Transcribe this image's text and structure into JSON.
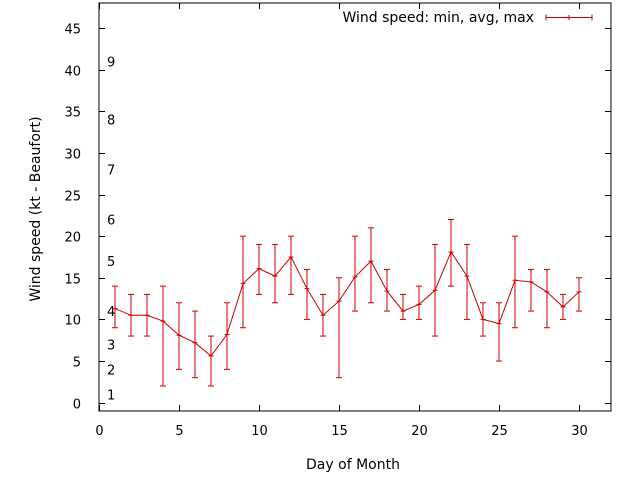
{
  "chart_data": {
    "type": "line",
    "xlabel": "Day of Month",
    "ylabel": "Wind speed (kt - Beaufort)",
    "xlim": [
      0,
      32
    ],
    "ylim": [
      -1,
      48
    ],
    "xticks": [
      0,
      5,
      10,
      15,
      20,
      25,
      30
    ],
    "yticks": [
      0,
      5,
      10,
      15,
      20,
      25,
      30,
      35,
      40,
      45
    ],
    "grid": false,
    "legend_position": "top-right",
    "beaufort_labels": [
      {
        "label": "1",
        "y": 1
      },
      {
        "label": "2",
        "y": 4
      },
      {
        "label": "3",
        "y": 7
      },
      {
        "label": "4",
        "y": 11
      },
      {
        "label": "5",
        "y": 17
      },
      {
        "label": "6",
        "y": 22
      },
      {
        "label": "7",
        "y": 28
      },
      {
        "label": "8",
        "y": 34
      },
      {
        "label": "9",
        "y": 41
      }
    ],
    "series": [
      {
        "name": "Wind speed: min, avg, max",
        "color": "#cc0000",
        "points": [
          {
            "x": 1,
            "avg": 11.3,
            "min": 9,
            "max": 14
          },
          {
            "x": 2,
            "avg": 10.5,
            "min": 8,
            "max": 13
          },
          {
            "x": 3,
            "avg": 10.5,
            "min": 8,
            "max": 13
          },
          {
            "x": 4,
            "avg": 9.8,
            "min": 2,
            "max": 14
          },
          {
            "x": 5,
            "avg": 8.1,
            "min": 4,
            "max": 12
          },
          {
            "x": 6,
            "avg": 7.2,
            "min": 3,
            "max": 11
          },
          {
            "x": 7,
            "avg": 5.6,
            "min": 2,
            "max": 8
          },
          {
            "x": 8,
            "avg": 8.2,
            "min": 4,
            "max": 12
          },
          {
            "x": 9,
            "avg": 14.3,
            "min": 9,
            "max": 20
          },
          {
            "x": 10,
            "avg": 16.1,
            "min": 13,
            "max": 19
          },
          {
            "x": 11,
            "avg": 15.2,
            "min": 12,
            "max": 19
          },
          {
            "x": 12,
            "avg": 17.5,
            "min": 13,
            "max": 20
          },
          {
            "x": 13,
            "avg": 13.7,
            "min": 10,
            "max": 16
          },
          {
            "x": 14,
            "avg": 10.5,
            "min": 8,
            "max": 13
          },
          {
            "x": 15,
            "avg": 12.2,
            "min": 3,
            "max": 15
          },
          {
            "x": 16,
            "avg": 15.1,
            "min": 11,
            "max": 20
          },
          {
            "x": 17,
            "avg": 17.0,
            "min": 12,
            "max": 21
          },
          {
            "x": 18,
            "avg": 13.4,
            "min": 11,
            "max": 16
          },
          {
            "x": 19,
            "avg": 11.0,
            "min": 10,
            "max": 13
          },
          {
            "x": 20,
            "avg": 11.8,
            "min": 10,
            "max": 14
          },
          {
            "x": 21,
            "avg": 13.5,
            "min": 8,
            "max": 19
          },
          {
            "x": 22,
            "avg": 18.1,
            "min": 14,
            "max": 22
          },
          {
            "x": 23,
            "avg": 15.2,
            "min": 10,
            "max": 19
          },
          {
            "x": 24,
            "avg": 10.0,
            "min": 8,
            "max": 12
          },
          {
            "x": 25,
            "avg": 9.5,
            "min": 5,
            "max": 12
          },
          {
            "x": 26,
            "avg": 14.7,
            "min": 9,
            "max": 20
          },
          {
            "x": 27,
            "avg": 14.5,
            "min": 11,
            "max": 16
          },
          {
            "x": 28,
            "avg": 13.3,
            "min": 9,
            "max": 16
          },
          {
            "x": 29,
            "avg": 11.5,
            "min": 10,
            "max": 13
          },
          {
            "x": 30,
            "avg": 13.3,
            "min": 11,
            "max": 15
          }
        ]
      }
    ]
  }
}
